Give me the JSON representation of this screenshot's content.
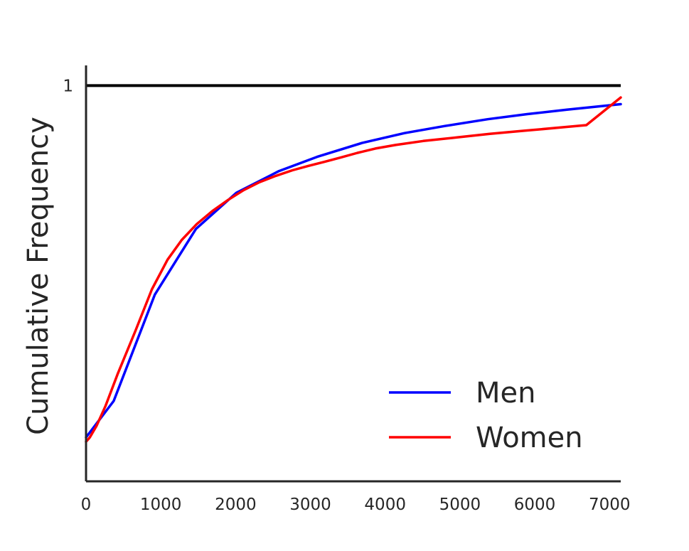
{
  "chart_data": {
    "type": "line",
    "title": "",
    "xlabel": "",
    "ylabel": "Cumulative Frequency",
    "xlim": [
      0,
      7150
    ],
    "ylim": [
      0,
      1.051
    ],
    "x_ticks": [
      "0",
      "1000",
      "2000",
      "3000",
      "4000",
      "5000",
      "6000",
      "7000"
    ],
    "x_tick_values": [
      0,
      1000,
      2000,
      3000,
      4000,
      5000,
      6000,
      7000
    ],
    "y_ticks": [
      "1"
    ],
    "y_tick_values": [
      1
    ],
    "reference_line": {
      "y": 1,
      "color": "#000000"
    },
    "grid": false,
    "legend_position": "bottom-right",
    "series": [
      {
        "name": "Men",
        "color": "#0000ff",
        "x": [
          0,
          370,
          920,
          1470,
          2010,
          2580,
          3090,
          3690,
          4260,
          4800,
          5370,
          5900,
          6430,
          7150
        ],
        "y": [
          0.111,
          0.203,
          0.472,
          0.638,
          0.729,
          0.784,
          0.82,
          0.855,
          0.88,
          0.898,
          0.915,
          0.928,
          0.939,
          0.953
        ]
      },
      {
        "name": "Women",
        "color": "#ff0000",
        "x": [
          0,
          50,
          140,
          260,
          420,
          660,
          880,
          1090,
          1280,
          1480,
          1690,
          1900,
          2110,
          2320,
          2540,
          2760,
          2970,
          3180,
          3400,
          3630,
          3870,
          4140,
          4510,
          4960,
          5400,
          5870,
          6400,
          6690,
          7150
        ],
        "y": [
          0.1,
          0.111,
          0.14,
          0.19,
          0.27,
          0.38,
          0.485,
          0.56,
          0.61,
          0.65,
          0.683,
          0.711,
          0.736,
          0.756,
          0.772,
          0.786,
          0.797,
          0.807,
          0.818,
          0.83,
          0.841,
          0.85,
          0.86,
          0.869,
          0.878,
          0.886,
          0.895,
          0.9,
          0.97
        ]
      }
    ]
  }
}
